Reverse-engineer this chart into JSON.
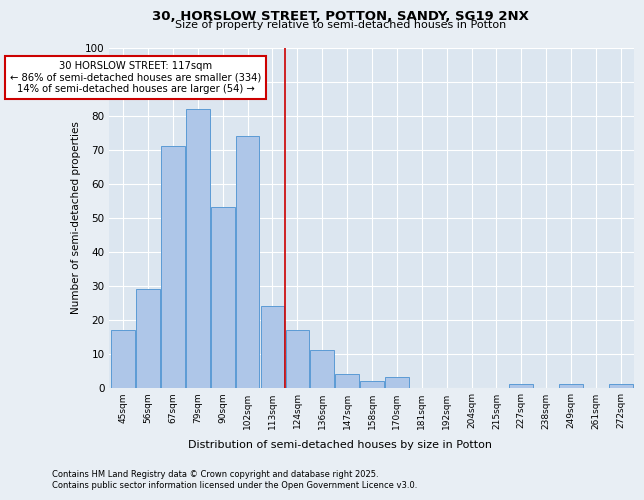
{
  "title1": "30, HORSLOW STREET, POTTON, SANDY, SG19 2NX",
  "title2": "Size of property relative to semi-detached houses in Potton",
  "xlabel": "Distribution of semi-detached houses by size in Potton",
  "ylabel": "Number of semi-detached properties",
  "footnote1": "Contains HM Land Registry data © Crown copyright and database right 2025.",
  "footnote2": "Contains public sector information licensed under the Open Government Licence v3.0.",
  "bin_labels": [
    "45sqm",
    "56sqm",
    "67sqm",
    "79sqm",
    "90sqm",
    "102sqm",
    "113sqm",
    "124sqm",
    "136sqm",
    "147sqm",
    "158sqm",
    "170sqm",
    "181sqm",
    "192sqm",
    "204sqm",
    "215sqm",
    "227sqm",
    "238sqm",
    "249sqm",
    "261sqm",
    "272sqm"
  ],
  "bar_values": [
    17,
    29,
    71,
    82,
    53,
    74,
    24,
    17,
    11,
    4,
    2,
    3,
    0,
    0,
    0,
    0,
    1,
    0,
    1,
    0,
    1
  ],
  "bar_color": "#aec6e8",
  "bar_edge_color": "#5b9bd5",
  "vline_x": 6.5,
  "vline_color": "#cc0000",
  "annotation_title": "30 HORSLOW STREET: 117sqm",
  "annotation_line1": "← 86% of semi-detached houses are smaller (334)",
  "annotation_line2": "14% of semi-detached houses are larger (54) →",
  "annotation_box_color": "#ffffff",
  "annotation_box_edge": "#cc0000",
  "ylim": [
    0,
    100
  ],
  "yticks": [
    0,
    10,
    20,
    30,
    40,
    50,
    60,
    70,
    80,
    90,
    100
  ],
  "bg_color": "#e8eef4",
  "plot_bg_color": "#dce6f0"
}
